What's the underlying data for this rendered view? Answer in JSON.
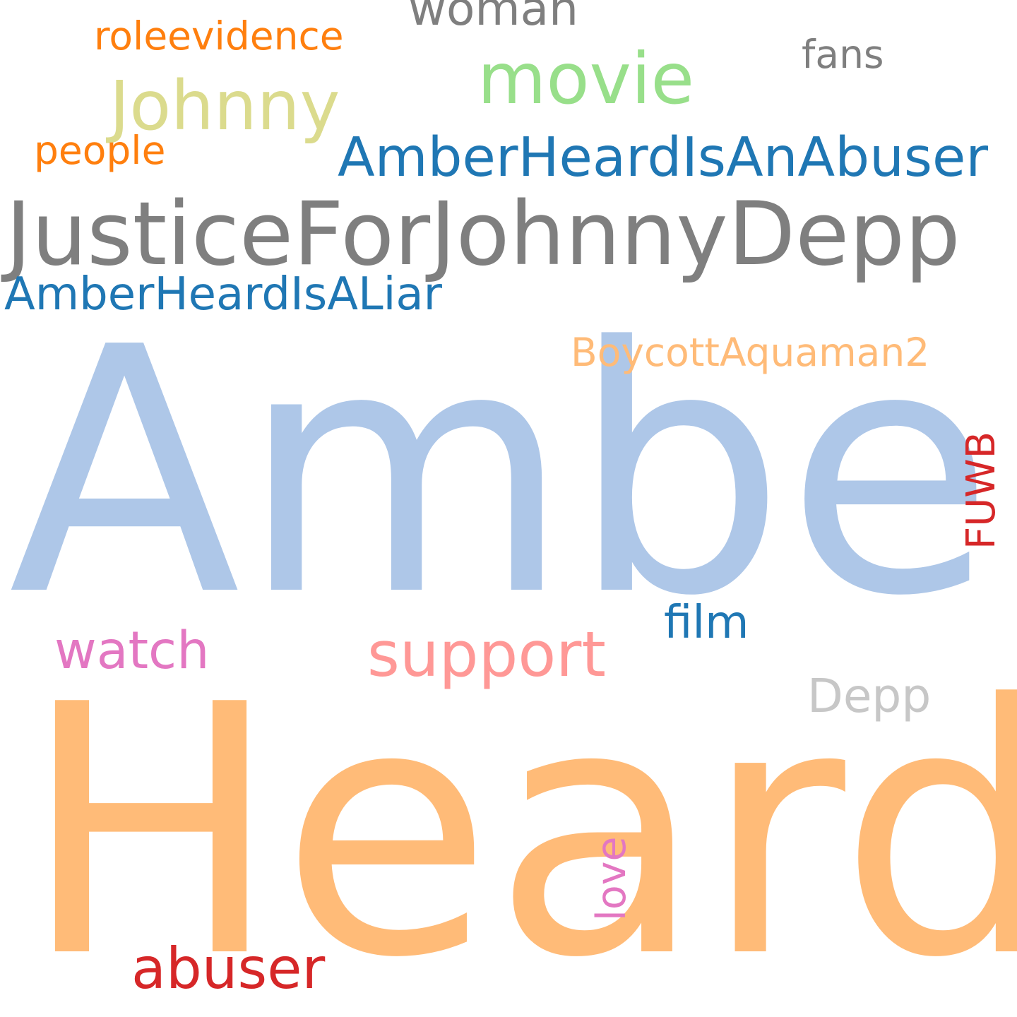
{
  "words": {
    "amber": {
      "text": "Amber",
      "color": "#aec7e8"
    },
    "heard": {
      "text": "Heard",
      "color": "#ffbb78"
    },
    "justice": {
      "text": "JusticeForJohnnyDepp",
      "color": "#7f7f7f"
    },
    "abuser_tag": {
      "text": "AmberHeardIsAnAbuser",
      "color": "#1f77b4"
    },
    "liar_tag": {
      "text": "AmberHeardIsALiar",
      "color": "#1f77b4"
    },
    "movie": {
      "text": "movie",
      "color": "#98df8a"
    },
    "johnny": {
      "text": "Johnny",
      "color": "#dbdb8d"
    },
    "woman": {
      "text": "woman",
      "color": "#7f7f7f"
    },
    "roleevidence": {
      "text": "roleevidence",
      "color": "#ff7f0e"
    },
    "fans": {
      "text": "fans",
      "color": "#7f7f7f"
    },
    "people": {
      "text": "people",
      "color": "#ff7f0e"
    },
    "boycott": {
      "text": "BoycottAquaman2",
      "color": "#ffbb78"
    },
    "fuwb": {
      "text": "FUWB",
      "color": "#d62728"
    },
    "film": {
      "text": "film",
      "color": "#1f77b4"
    },
    "watch": {
      "text": "watch",
      "color": "#e377c2"
    },
    "support": {
      "text": "support",
      "color": "#ff9896"
    },
    "depp": {
      "text": "Depp",
      "color": "#c7c7c7"
    },
    "love": {
      "text": "love",
      "color": "#e377c2"
    },
    "abuser": {
      "text": "abuser",
      "color": "#d62728"
    }
  }
}
